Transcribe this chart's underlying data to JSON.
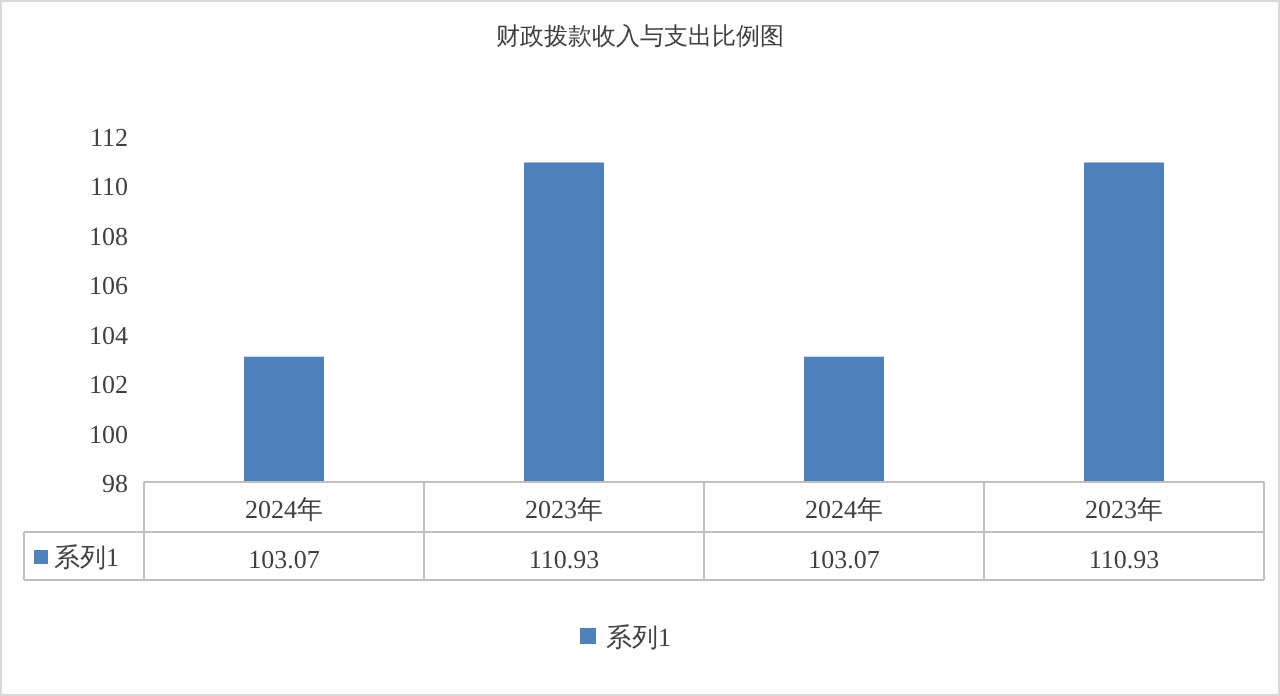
{
  "chart_data": {
    "type": "bar",
    "title": "财政拨款收入与支出比例图",
    "categories": [
      "2024年",
      "2023年",
      "2024年",
      "2023年"
    ],
    "series": [
      {
        "name": "系列1",
        "color": "#4f81bd",
        "values": [
          103.07,
          110.93,
          103.07,
          110.93
        ]
      }
    ],
    "ylim": [
      98,
      112
    ],
    "yticks": [
      98,
      100,
      102,
      104,
      106,
      108,
      110,
      112
    ],
    "data_labels": true,
    "legend": "bottom"
  }
}
